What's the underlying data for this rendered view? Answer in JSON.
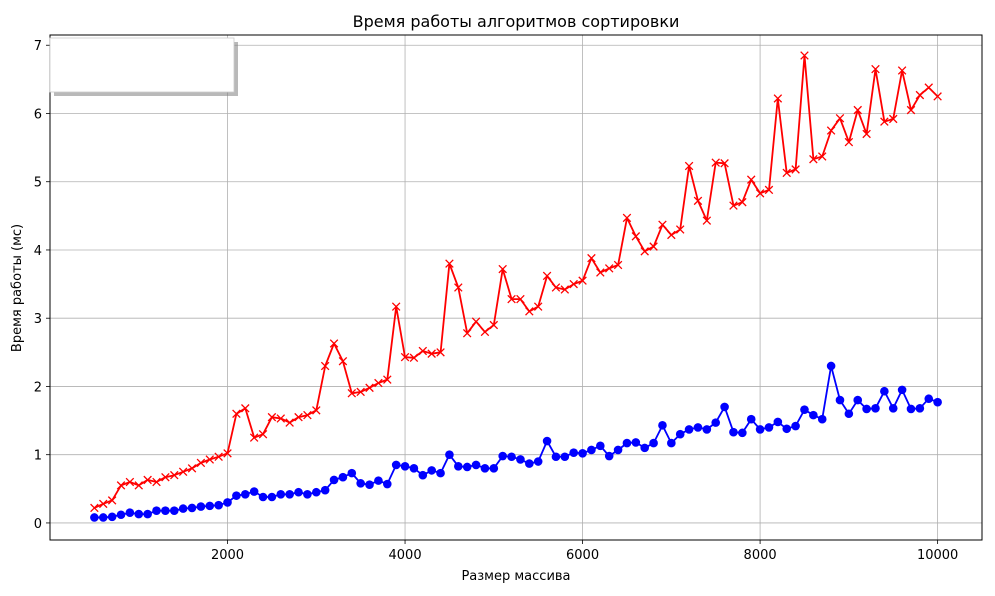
{
  "chart_data": {
    "type": "line",
    "title": "Время работы алгоритмов сортировки",
    "xlabel": "Размер массива",
    "ylabel": "Время работы (мс)",
    "xlim": [
      0,
      10500
    ],
    "ylim": [
      -0.25,
      7.15
    ],
    "xticks": [
      2000,
      4000,
      6000,
      8000,
      10000
    ],
    "yticks": [
      0,
      1,
      2,
      3,
      4,
      5,
      6,
      7
    ],
    "grid": true,
    "legend": "top-left",
    "x": [
      500,
      600,
      700,
      800,
      900,
      1000,
      1100,
      1200,
      1300,
      1400,
      1500,
      1600,
      1700,
      1800,
      1900,
      2000,
      2100,
      2200,
      2300,
      2400,
      2500,
      2600,
      2700,
      2800,
      2900,
      3000,
      3100,
      3200,
      3300,
      3400,
      3500,
      3600,
      3700,
      3800,
      3900,
      4000,
      4100,
      4200,
      4300,
      4400,
      4500,
      4600,
      4700,
      4800,
      4900,
      5000,
      5100,
      5200,
      5300,
      5400,
      5500,
      5600,
      5700,
      5800,
      5900,
      6000,
      6100,
      6200,
      6300,
      6400,
      6500,
      6600,
      6700,
      6800,
      6900,
      7000,
      7100,
      7200,
      7300,
      7400,
      7500,
      7600,
      7700,
      7800,
      7900,
      8000,
      8100,
      8200,
      8300,
      8400,
      8500,
      8600,
      8700,
      8800,
      8900,
      9000,
      9100,
      9200,
      9300,
      9400,
      9500,
      9600,
      9700,
      9800,
      9900,
      10000
    ],
    "series": [
      {
        "color": "#ff0000",
        "marker": "x",
        "values": [
          0.22,
          0.28,
          0.33,
          0.55,
          0.6,
          0.55,
          0.63,
          0.6,
          0.67,
          0.7,
          0.75,
          0.8,
          0.88,
          0.93,
          0.97,
          1.02,
          1.6,
          1.68,
          1.25,
          1.3,
          1.55,
          1.53,
          1.47,
          1.55,
          1.58,
          1.65,
          2.3,
          2.63,
          2.37,
          1.9,
          1.92,
          1.98,
          2.05,
          2.1,
          3.17,
          2.43,
          2.42,
          2.52,
          2.48,
          2.5,
          3.8,
          3.45,
          2.78,
          2.95,
          2.8,
          2.9,
          3.72,
          3.28,
          3.28,
          3.1,
          3.17,
          3.62,
          3.45,
          3.42,
          3.5,
          3.55,
          3.88,
          3.67,
          3.73,
          3.78,
          4.47,
          4.2,
          3.98,
          4.05,
          4.37,
          4.22,
          4.3,
          5.23,
          4.72,
          4.43,
          5.28,
          5.27,
          4.65,
          4.7,
          5.03,
          4.83,
          4.88,
          6.22,
          5.13,
          5.18,
          6.85,
          5.33,
          5.37,
          5.75,
          5.93,
          5.58,
          6.05,
          5.7,
          6.65,
          5.88,
          5.92,
          6.63,
          6.05,
          6.27,
          6.38,
          6.25
        ]
      },
      {
        "color": "#0000ff",
        "marker": "o",
        "values": [
          0.08,
          0.08,
          0.09,
          0.12,
          0.15,
          0.13,
          0.13,
          0.18,
          0.18,
          0.18,
          0.21,
          0.22,
          0.24,
          0.25,
          0.26,
          0.3,
          0.4,
          0.42,
          0.46,
          0.38,
          0.38,
          0.42,
          0.42,
          0.45,
          0.42,
          0.45,
          0.48,
          0.63,
          0.67,
          0.73,
          0.58,
          0.56,
          0.62,
          0.57,
          0.85,
          0.83,
          0.8,
          0.7,
          0.77,
          0.73,
          1.0,
          0.83,
          0.82,
          0.85,
          0.8,
          0.8,
          0.98,
          0.97,
          0.93,
          0.87,
          0.9,
          1.2,
          0.97,
          0.97,
          1.03,
          1.02,
          1.07,
          1.13,
          0.98,
          1.07,
          1.17,
          1.18,
          1.1,
          1.17,
          1.43,
          1.17,
          1.3,
          1.37,
          1.4,
          1.37,
          1.47,
          1.7,
          1.33,
          1.32,
          1.52,
          1.37,
          1.4,
          1.48,
          1.38,
          1.42,
          1.66,
          1.58,
          1.52,
          2.3,
          1.8,
          1.6,
          1.8,
          1.67,
          1.68,
          1.93,
          1.68,
          1.95,
          1.67,
          1.68,
          1.82,
          1.77
        ]
      }
    ]
  }
}
